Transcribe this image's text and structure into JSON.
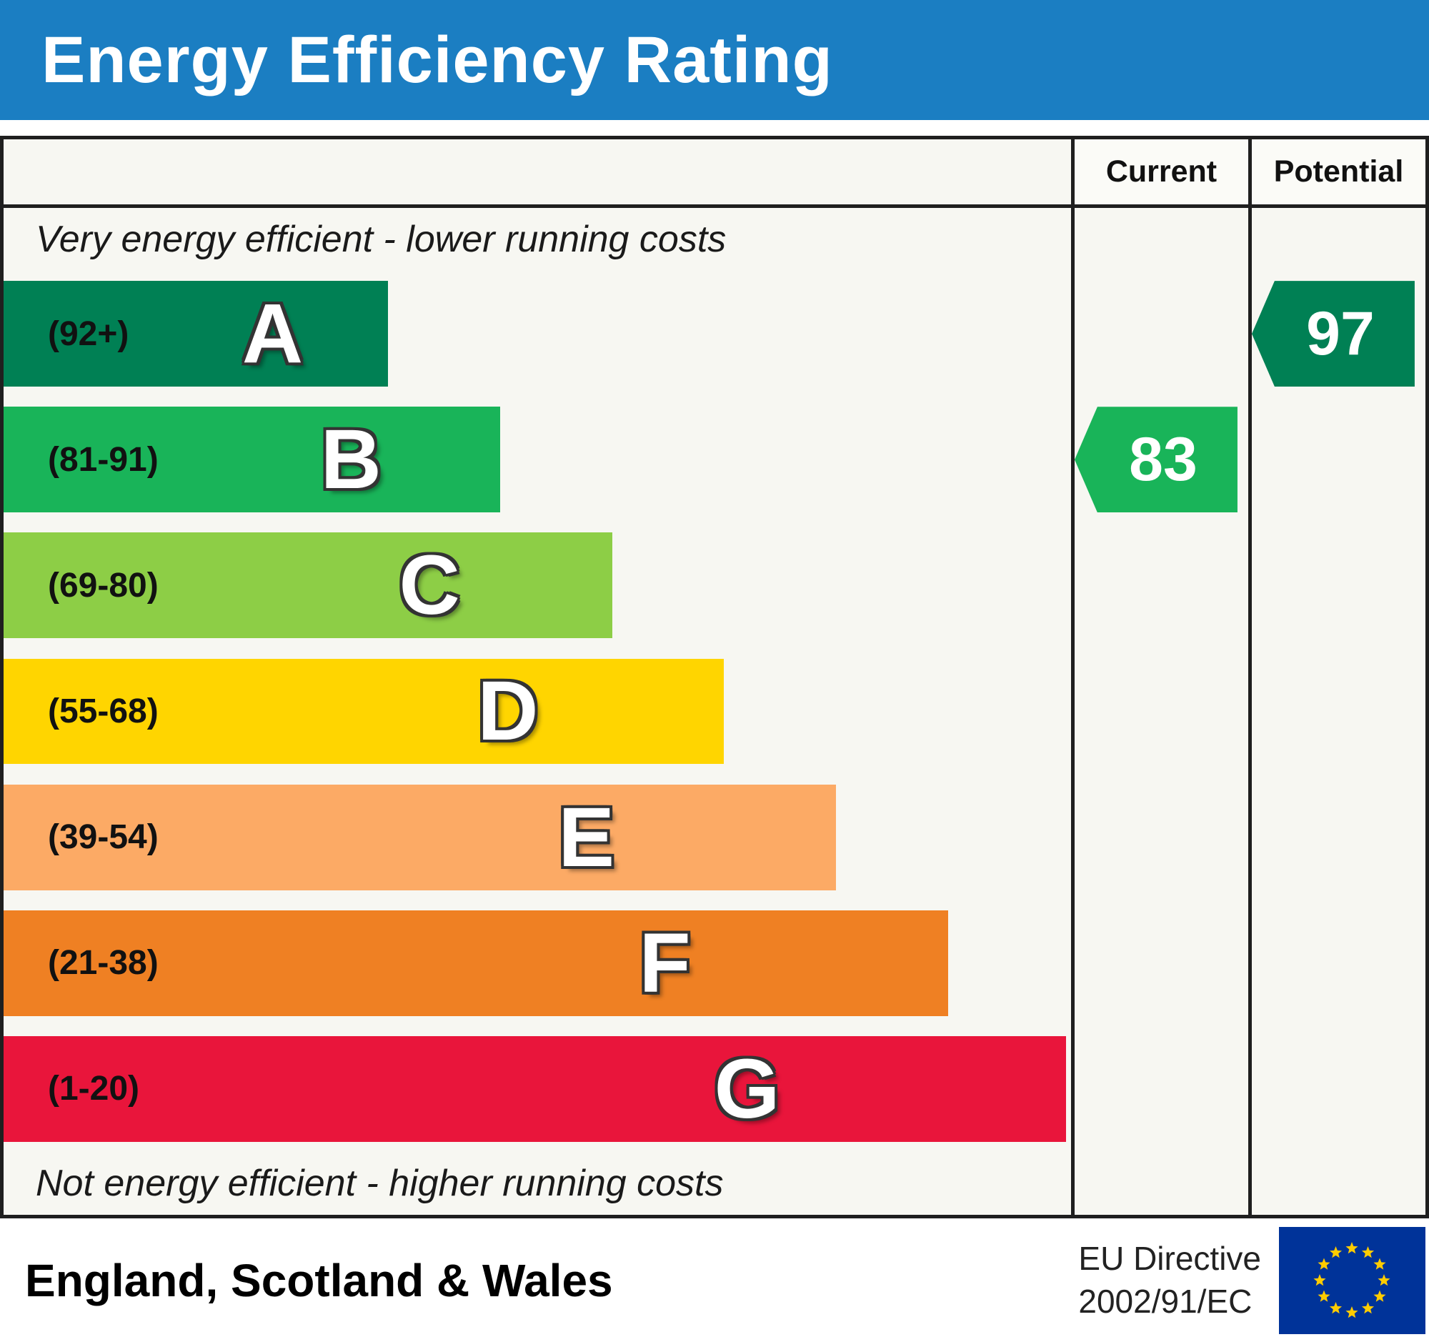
{
  "title": "Energy Efficiency Rating",
  "columns": {
    "current": "Current",
    "potential": "Potential"
  },
  "captions": {
    "top": "Very energy efficient - lower running costs",
    "bottom": "Not energy efficient - higher running costs"
  },
  "bands": [
    {
      "letter": "A",
      "range": "(92+)",
      "color": "#008054",
      "width": 36
    },
    {
      "letter": "B",
      "range": "(81-91)",
      "color": "#19b459",
      "width": 46.5
    },
    {
      "letter": "C",
      "range": "(69-80)",
      "color": "#8dce46",
      "width": 57
    },
    {
      "letter": "D",
      "range": "(55-68)",
      "color": "#ffd500",
      "width": 67.5
    },
    {
      "letter": "E",
      "range": "(39-54)",
      "color": "#fcaa65",
      "width": 78
    },
    {
      "letter": "F",
      "range": "(21-38)",
      "color": "#ef8023",
      "width": 88.5
    },
    {
      "letter": "G",
      "range": "(1-20)",
      "color": "#e9153b",
      "width": 99.5
    }
  ],
  "ratings": {
    "current": {
      "value": "83",
      "band": "B",
      "color": "#19b459",
      "row": 1
    },
    "potential": {
      "value": "97",
      "band": "A",
      "color": "#008054",
      "row": 0
    }
  },
  "footer": {
    "region": "England, Scotland & Wales",
    "directive_line1": "EU Directive",
    "directive_line2": "2002/91/EC"
  },
  "colors": {
    "header_band": "#1b7ec2",
    "frame_border": "#1f1f1f",
    "chart_background": "#f7f7f2",
    "eu_flag_blue": "#003399",
    "eu_flag_stars": "#ffcc00"
  },
  "chart_data": {
    "type": "bar",
    "title": "Energy Efficiency Rating",
    "categories": [
      "A",
      "B",
      "C",
      "D",
      "E",
      "F",
      "G"
    ],
    "band_ranges": [
      "92+",
      "81-91",
      "69-80",
      "55-68",
      "39-54",
      "21-38",
      "1-20"
    ],
    "band_colors": [
      "#008054",
      "#19b459",
      "#8dce46",
      "#ffd500",
      "#fcaa65",
      "#ef8023",
      "#e9153b"
    ],
    "bar_lengths_pct": [
      36,
      46.5,
      57,
      67.5,
      78,
      88.5,
      99.5
    ],
    "current": 83,
    "current_band": "B",
    "potential": 97,
    "potential_band": "A",
    "legend_position": "right-columns",
    "notes": "Arrow markers in Current and Potential columns aligned to bands B and A respectively"
  }
}
